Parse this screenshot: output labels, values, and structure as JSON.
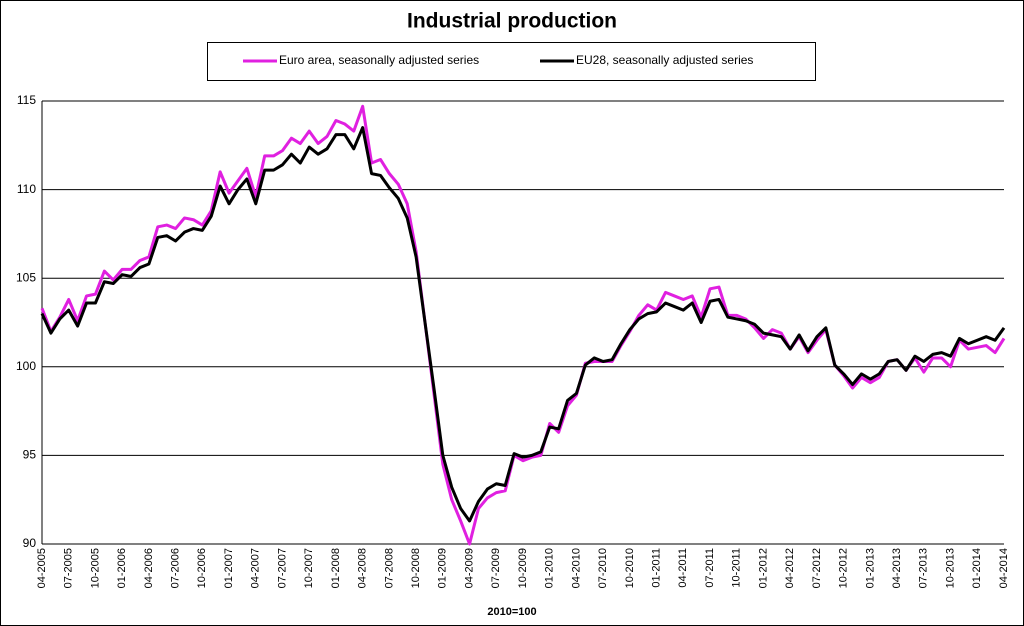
{
  "chart_data": {
    "type": "line",
    "title": "Industrial production",
    "x_label": "2010=100",
    "categories": [
      "04-2005",
      null,
      null,
      "07-2005",
      null,
      null,
      "10-2005",
      null,
      null,
      "01-2006",
      null,
      null,
      "04-2006",
      null,
      null,
      "07-2006",
      null,
      null,
      "10-2006",
      null,
      null,
      "01-2007",
      null,
      null,
      "04-2007",
      null,
      null,
      "07-2007",
      null,
      null,
      "10-2007",
      null,
      null,
      "01-2008",
      null,
      null,
      "04-2008",
      null,
      null,
      "07-2008",
      null,
      null,
      "10-2008",
      null,
      null,
      "01-2009",
      null,
      null,
      "04-2009",
      null,
      null,
      "07-2009",
      null,
      null,
      "10-2009",
      null,
      null,
      "01-2010",
      null,
      null,
      "04-2010",
      null,
      null,
      "07-2010",
      null,
      null,
      "10-2010",
      null,
      null,
      "01-2011",
      null,
      null,
      "04-2011",
      null,
      null,
      "07-2011",
      null,
      null,
      "10-2011",
      null,
      null,
      "01-2012",
      null,
      null,
      "04-2012",
      null,
      null,
      "07-2012",
      null,
      null,
      "10-2012",
      null,
      null,
      "01-2013",
      null,
      null,
      "04-2013",
      null,
      null,
      "07-2013",
      null,
      null,
      "10-2013",
      null,
      null,
      "01-2014",
      null,
      null,
      "04-2014"
    ],
    "series": [
      {
        "name": "Euro area, seasonally adjusted series",
        "color": "#e020e0",
        "values": [
          103.3,
          102.0,
          102.8,
          103.8,
          102.6,
          104.0,
          104.1,
          105.4,
          104.9,
          105.5,
          105.5,
          106.0,
          106.2,
          107.9,
          108.0,
          107.8,
          108.4,
          108.3,
          108.0,
          108.8,
          111.0,
          109.8,
          110.5,
          111.2,
          109.6,
          111.9,
          111.9,
          112.2,
          112.9,
          112.6,
          113.3,
          112.6,
          113.0,
          113.9,
          113.7,
          113.3,
          114.7,
          111.5,
          111.7,
          110.9,
          110.3,
          109.2,
          106.5,
          102.5,
          98.5,
          94.5,
          92.5,
          91.3,
          90.0,
          92.0,
          92.6,
          92.9,
          93.0,
          95.0,
          94.7,
          94.9,
          95.0,
          96.8,
          96.3,
          97.8,
          98.4,
          100.2,
          100.3,
          100.3,
          100.3,
          101.2,
          102.0,
          102.9,
          103.5,
          103.2,
          104.2,
          104.0,
          103.8,
          104.0,
          102.8,
          104.4,
          104.5,
          102.9,
          102.9,
          102.7,
          102.2,
          101.6,
          102.1,
          101.9,
          101.0,
          101.7,
          100.8,
          101.5,
          102.1,
          100.1,
          99.5,
          98.8,
          99.4,
          99.1,
          99.4,
          100.3,
          100.4,
          99.8,
          100.5,
          99.7,
          100.5,
          100.5,
          100.0,
          101.5,
          101.0,
          101.1,
          101.2,
          100.8,
          101.6
        ]
      },
      {
        "name": "EU28, seasonally adjusted series",
        "color": "#000000",
        "values": [
          103.0,
          101.9,
          102.7,
          103.2,
          102.3,
          103.6,
          103.6,
          104.8,
          104.7,
          105.2,
          105.1,
          105.6,
          105.8,
          107.3,
          107.4,
          107.1,
          107.6,
          107.8,
          107.7,
          108.5,
          110.2,
          109.2,
          110.0,
          110.6,
          109.2,
          111.1,
          111.1,
          111.4,
          112.0,
          111.5,
          112.4,
          112.0,
          112.3,
          113.1,
          113.1,
          112.3,
          113.5,
          110.9,
          110.8,
          110.1,
          109.5,
          108.4,
          106.2,
          102.5,
          98.8,
          95.0,
          93.2,
          92.0,
          91.3,
          92.4,
          93.1,
          93.4,
          93.3,
          95.1,
          94.9,
          95.0,
          95.2,
          96.6,
          96.5,
          98.1,
          98.5,
          100.1,
          100.5,
          100.3,
          100.4,
          101.3,
          102.1,
          102.7,
          103.0,
          103.1,
          103.6,
          103.4,
          103.2,
          103.6,
          102.5,
          103.7,
          103.8,
          102.8,
          102.7,
          102.6,
          102.4,
          101.9,
          101.8,
          101.7,
          101.0,
          101.8,
          100.9,
          101.7,
          102.2,
          100.1,
          99.6,
          99.0,
          99.6,
          99.3,
          99.6,
          100.3,
          100.4,
          99.8,
          100.6,
          100.3,
          100.7,
          100.8,
          100.6,
          101.6,
          101.3,
          101.5,
          101.7,
          101.5,
          102.2
        ]
      }
    ],
    "ylim": [
      90,
      115
    ],
    "yticks": [
      90,
      95,
      100,
      105,
      110,
      115
    ],
    "grid": true
  }
}
